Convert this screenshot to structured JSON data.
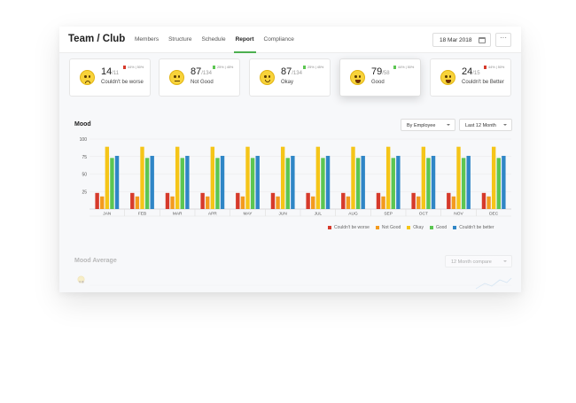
{
  "header": {
    "title": "Team / Club",
    "nav": [
      "Members",
      "Structure",
      "Schedule",
      "Report",
      "Compliance"
    ],
    "active_nav": "Report",
    "date": "18 Mar 2018",
    "more": "···"
  },
  "cards": [
    {
      "value": "14",
      "total": "/11",
      "label": "Couldn't be worse",
      "trend": "44% | 50%",
      "trend_dir": "down",
      "mood": "worst",
      "selected": false
    },
    {
      "value": "87",
      "total": "/134",
      "label": "Not Good",
      "trend": "25% | 45%",
      "trend_dir": "up",
      "mood": "notgood",
      "selected": false
    },
    {
      "value": "87",
      "total": "/134",
      "label": "Okay",
      "trend": "25% | 45%",
      "trend_dir": "up",
      "mood": "okay",
      "selected": false
    },
    {
      "value": "79",
      "total": "/58",
      "label": "Good",
      "trend": "44% | 50%",
      "trend_dir": "up",
      "mood": "good",
      "selected": true
    },
    {
      "value": "24",
      "total": "/15",
      "label": "Couldn't be Better",
      "trend": "44% | 50%",
      "trend_dir": "down",
      "mood": "better",
      "selected": false
    }
  ],
  "mood_section": {
    "title": "Mood",
    "filter_employee": "By Employee",
    "filter_period": "Last 12 Month"
  },
  "colors": {
    "worse": "#d63a2b",
    "notgood": "#f39a1e",
    "okay": "#f5c518",
    "good": "#5cc652",
    "better": "#2f86c6",
    "accent": "#4caf50"
  },
  "chart_data": {
    "type": "bar",
    "categories": [
      "JAN",
      "FEB",
      "MAR",
      "APR",
      "MAY",
      "JUN",
      "JUL",
      "AUG",
      "SEP",
      "OCT",
      "NOV",
      "DEC"
    ],
    "ylim": [
      0,
      100
    ],
    "yticks": [
      100,
      75,
      50,
      25
    ],
    "series": [
      {
        "name": "Couldn't be worse",
        "values": [
          23,
          23,
          23,
          23,
          23,
          23,
          23,
          23,
          23,
          23,
          23,
          23
        ]
      },
      {
        "name": "Not Good",
        "values": [
          18,
          18,
          18,
          18,
          18,
          18,
          18,
          18,
          18,
          18,
          18,
          18
        ]
      },
      {
        "name": "Okay",
        "values": [
          89,
          89,
          89,
          89,
          89,
          89,
          89,
          89,
          89,
          89,
          89,
          89
        ]
      },
      {
        "name": "Good",
        "values": [
          73,
          73,
          73,
          73,
          73,
          73,
          73,
          73,
          73,
          73,
          73,
          73
        ]
      },
      {
        "name": "Couldn't be better",
        "values": [
          76,
          76,
          76,
          76,
          76,
          76,
          76,
          76,
          76,
          76,
          76,
          76
        ]
      }
    ]
  },
  "legend": [
    "Couldn't be worse",
    "Not Good",
    "Okay",
    "Good",
    "Couldn't be better"
  ],
  "mood_average": {
    "title": "Mood Average",
    "filter": "12 Month compare"
  }
}
